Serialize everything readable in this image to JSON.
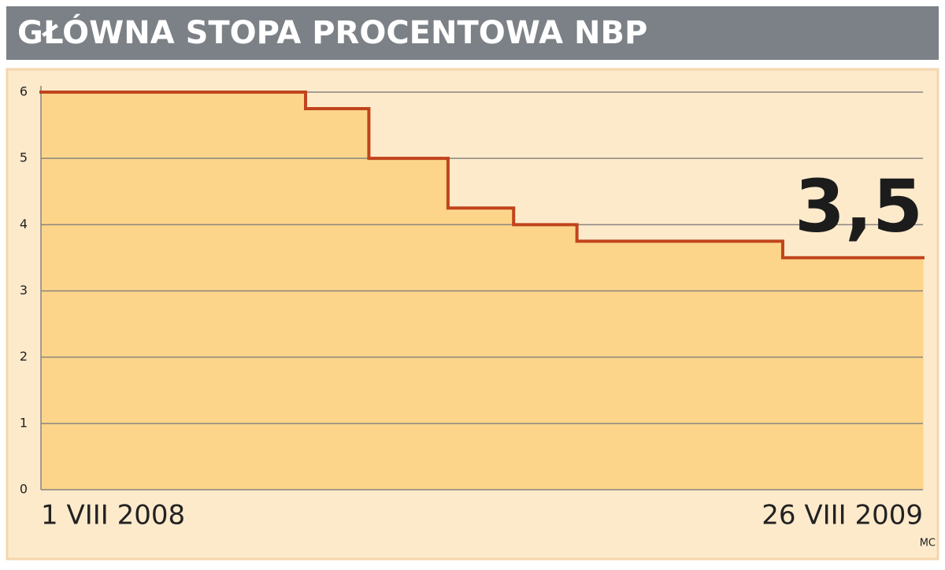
{
  "chart_data": {
    "type": "step",
    "title": "GŁÓWNA STOPA PROCENTOWA NBP",
    "x": [
      0,
      117,
      145,
      180,
      209,
      237,
      328,
      390
    ],
    "values": [
      6,
      5.75,
      5,
      4.25,
      4,
      3.75,
      3.5,
      3.5
    ],
    "color": "#c0441c",
    "fill": "#fcd58a",
    "xlim": [
      0,
      390
    ],
    "xticks": [
      {
        "value": 0,
        "label": "1 VIII 2008"
      },
      {
        "value": 390,
        "label": "26 VIII 2009"
      }
    ],
    "ylim": [
      0,
      6
    ],
    "yticks": [
      0,
      1,
      2,
      3,
      4,
      5,
      6
    ],
    "grid": true,
    "annotation": "3,5",
    "source": "MC"
  }
}
